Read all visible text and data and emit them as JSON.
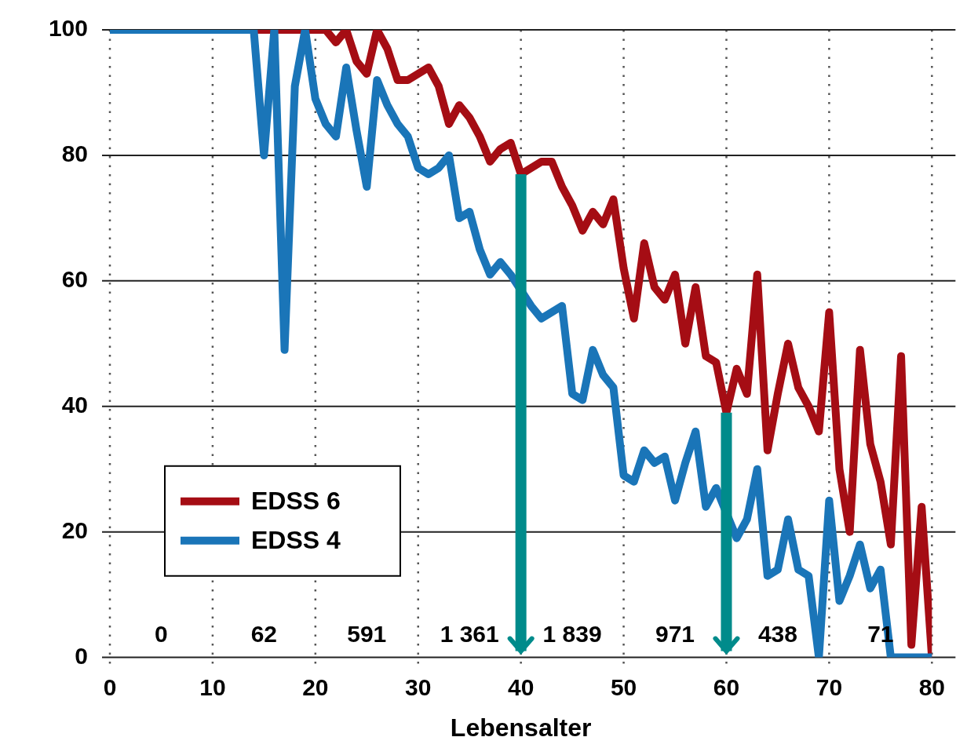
{
  "chart_data": {
    "type": "line",
    "xlabel": "Lebensalter",
    "x": [
      0,
      1,
      2,
      3,
      4,
      5,
      6,
      7,
      8,
      9,
      10,
      11,
      12,
      13,
      14,
      15,
      16,
      17,
      18,
      19,
      20,
      21,
      22,
      23,
      24,
      25,
      26,
      27,
      28,
      29,
      30,
      31,
      32,
      33,
      34,
      35,
      36,
      37,
      38,
      39,
      40,
      41,
      42,
      43,
      44,
      45,
      46,
      47,
      48,
      49,
      50,
      51,
      52,
      53,
      54,
      55,
      56,
      57,
      58,
      59,
      60,
      61,
      62,
      63,
      64,
      65,
      66,
      67,
      68,
      69,
      70,
      71,
      72,
      73,
      74,
      75,
      76,
      77,
      78,
      79,
      80
    ],
    "series": [
      {
        "name": "EDSS 6",
        "color": "#a50d14",
        "values": [
          null,
          null,
          null,
          null,
          null,
          null,
          null,
          null,
          null,
          null,
          null,
          null,
          null,
          null,
          100,
          100,
          100,
          100,
          100,
          100,
          100,
          100,
          98,
          100,
          95,
          93,
          100,
          97,
          92,
          92,
          93,
          94,
          91,
          85,
          88,
          86,
          83,
          79,
          81,
          82,
          77,
          78,
          79,
          79,
          75,
          72,
          68,
          71,
          69,
          73,
          62,
          54,
          66,
          59,
          57,
          61,
          50,
          59,
          48,
          47,
          39,
          46,
          42,
          61,
          33,
          42,
          50,
          43,
          40,
          36,
          55,
          30,
          20,
          49,
          34,
          28,
          18,
          48,
          2,
          24,
          0
        ]
      },
      {
        "name": "EDSS 4",
        "color": "#1a75b8",
        "values": [
          100,
          100,
          100,
          100,
          100,
          100,
          100,
          100,
          100,
          100,
          100,
          100,
          100,
          100,
          100,
          80,
          100,
          49,
          91,
          100,
          89,
          85,
          83,
          94,
          84,
          75,
          92,
          88,
          85,
          83,
          78,
          77,
          78,
          80,
          70,
          71,
          65,
          61,
          63,
          61,
          null,
          56,
          54,
          55,
          56,
          42,
          41,
          49,
          45,
          43,
          29,
          28,
          33,
          31,
          32,
          25,
          31,
          36,
          24,
          27,
          null,
          19,
          22,
          30,
          13,
          14,
          22,
          14,
          13,
          0,
          25,
          9,
          13,
          18,
          11,
          14,
          0,
          0,
          0,
          0,
          0
        ]
      }
    ],
    "xlim": [
      0,
      80
    ],
    "xticks": [
      0,
      10,
      20,
      30,
      40,
      50,
      60,
      70,
      80
    ],
    "ylim": [
      0,
      100
    ],
    "yticks": [
      0,
      20,
      40,
      60,
      80,
      100
    ],
    "grid": true,
    "legend": "bottom left",
    "marker": "none",
    "line_style": "solid",
    "ref_lines": [
      {
        "axis": "x",
        "value": 40,
        "color": "#008b8b"
      },
      {
        "axis": "x",
        "value": 60,
        "color": "#008b8b"
      }
    ],
    "annotations": [
      "0",
      "62",
      "591",
      "1 361",
      "1 839",
      "971",
      "438",
      "71"
    ]
  }
}
